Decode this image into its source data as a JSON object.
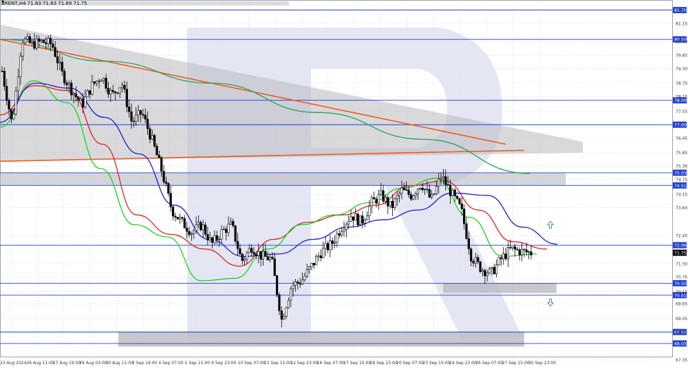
{
  "header": {
    "symbol_line": "BRENT,H4  71.83 71.83 71.69 71.75"
  },
  "colors": {
    "grid": "#d9dbe5",
    "level_line": "#1f3fd0",
    "level_label_bg": "#1f3fd0",
    "price_label_bg": "#0a0a0a",
    "orange_line": "#f05a1a",
    "ma_green_long": "#26a25a",
    "ma_red": "#e0201a",
    "ma_green_fast": "#17d117",
    "ma_blue": "#1818d8",
    "candle": "#000000",
    "zone_fill": "#b9b9bf",
    "arrow": "#3b6fe0",
    "watermark": "#dfe3f1"
  },
  "chart_data": {
    "type": "candlestick",
    "symbol": "BRENT",
    "timeframe": "H4",
    "ohlc_last": {
      "open": 71.83,
      "high": 71.83,
      "low": 71.69,
      "close": 71.75
    },
    "y_range": [
      67.35,
      82.0
    ],
    "y_ticks": [
      "81.15",
      "80.40",
      "79.85",
      "79.30",
      "78.70",
      "78.15",
      "77.55",
      "76.45",
      "75.85",
      "75.30",
      "74.75",
      "74.15",
      "73.60",
      "72.45",
      "71.30",
      "70.75",
      "70.15",
      "69.65",
      "69.05",
      "68.45",
      "67.35"
    ],
    "x_labels": [
      "23 Aug 2024",
      "26 Aug 11:00",
      "27 Aug 19:00",
      "29 Aug 03:00",
      "30 Aug 11:00",
      "2 Sep 19:00",
      "4 Sep 07:00",
      "5 Sep 15:00",
      "6 Sep 23:00",
      "10 Sep 07:00",
      "11 Sep 15:00",
      "12 Sep 23:00",
      "16 Sep 07:00",
      "17 Sep 15:00",
      "18 Sep 23:00",
      "20 Sep 07:00",
      "23 Sep 15:00",
      "24 Sep 23:00",
      "26 Sep 07:00",
      "27 Sep 15:00",
      "30 Sep 23:00"
    ],
    "levels": [
      "81.70",
      "80.50",
      "78.00",
      "77.00",
      "75.03",
      "74.51",
      "72.06",
      "70.50",
      "70.01",
      "68.50",
      "68.03"
    ],
    "current_price": "71.75",
    "current_price_value": 71.75,
    "close_path": [
      79.2,
      77.0,
      80.5,
      80.3,
      80.4,
      80.3,
      79.1,
      78.4,
      77.8,
      78.6,
      79.0,
      78.2,
      78.7,
      77.1,
      77.5,
      76.4,
      75.1,
      73.5,
      73.0,
      72.6,
      72.9,
      72.1,
      72.6,
      72.9,
      71.4,
      72.0,
      71.6,
      71.5,
      69.0,
      70.4,
      70.6,
      71.2,
      71.8,
      72.1,
      72.8,
      73.3,
      73.0,
      73.8,
      74.1,
      73.6,
      74.3,
      74.1,
      74.6,
      73.9,
      74.9,
      74.2,
      73.5,
      71.6,
      71.1,
      70.9,
      71.5,
      71.9,
      71.8,
      71.75
    ],
    "moving_averages": [
      {
        "color_key": "ma_green_long",
        "values": [
          80.5,
          79.6,
          78.7,
          77.5,
          76.4,
          75.0
        ]
      },
      {
        "color_key": "ma_red",
        "values": [
          77.4,
          78.6,
          78.4,
          76.2,
          73.3,
          72.5,
          71.9,
          71.2,
          72.3,
          73.0,
          73.3,
          73.7,
          74.5,
          74.7,
          73.5,
          72.2,
          71.9
        ]
      },
      {
        "color_key": "ma_green_fast",
        "values": [
          76.9,
          78.8,
          77.9,
          75.2,
          72.9,
          72.4,
          70.6,
          70.7,
          71.9,
          72.9,
          73.3,
          73.8,
          74.4,
          74.8,
          73.2,
          71.6,
          71.7
        ]
      },
      {
        "color_key": "ma_blue",
        "values": [
          77.1,
          78.7,
          78.5,
          77.3,
          75.8,
          73.7,
          72.3,
          71.6,
          71.7,
          72.3,
          72.8,
          73.1,
          73.5,
          74.2,
          74.1,
          72.8,
          72.1
        ]
      }
    ],
    "trend_lines": [
      {
        "from": [
          "2024-08-22",
          80.5
        ],
        "to": [
          "2024-09-25",
          76.2
        ]
      },
      {
        "from": [
          "2024-08-22",
          75.5
        ],
        "to": [
          "2024-09-25",
          75.9
        ]
      }
    ],
    "zones": [
      {
        "from": "2024-08-22",
        "to": "2024-09-25",
        "low": 74.5,
        "high": 81.1
      },
      {
        "from": "2024-09-05",
        "to": "2024-09-27",
        "low": 67.35,
        "high": 68.5
      },
      {
        "from": "2024-09-25",
        "to": "2024-10-01",
        "low": 70.1,
        "high": 70.5
      }
    ],
    "arrows": [
      {
        "direction": "up",
        "price": 72.9
      },
      {
        "direction": "down",
        "price": 69.7
      }
    ],
    "grid": true
  }
}
